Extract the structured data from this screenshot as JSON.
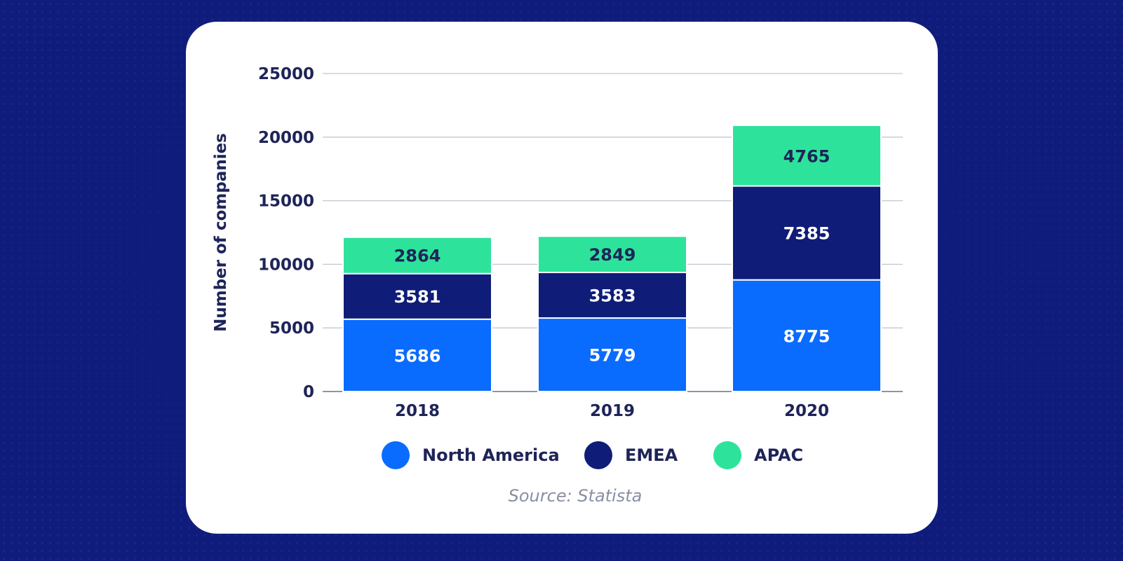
{
  "chart_data": {
    "type": "bar",
    "stacked": true,
    "categories": [
      "2018",
      "2019",
      "2020"
    ],
    "series": [
      {
        "name": "North America",
        "color": "#0a6bff",
        "label_color": "#ffffff",
        "values": [
          5686,
          5779,
          8775
        ]
      },
      {
        "name": "EMEA",
        "color": "#0f1d78",
        "label_color": "#ffffff",
        "values": [
          3581,
          3583,
          7385
        ]
      },
      {
        "name": "APAC",
        "color": "#2de39b",
        "label_color": "#1e2458",
        "values": [
          2864,
          2849,
          4765
        ]
      }
    ],
    "ylabel": "Number of companies",
    "ylim": [
      0,
      25000
    ],
    "yticks": [
      0,
      5000,
      10000,
      15000,
      20000,
      25000
    ],
    "grid": true,
    "legend": "bottom",
    "source": "Source: Statista"
  }
}
